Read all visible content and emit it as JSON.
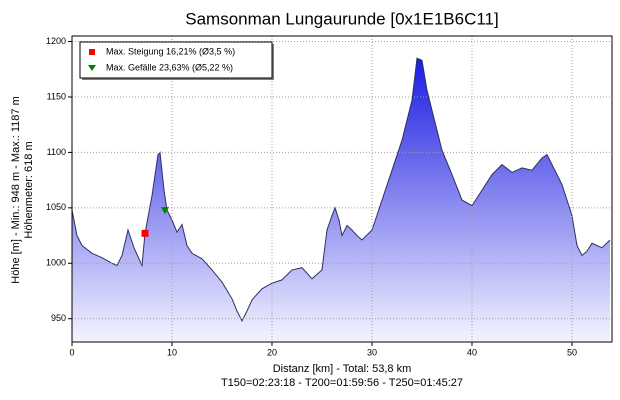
{
  "chart_data": {
    "type": "area",
    "title": "Samsonman Lungaurunde [0x1E1B6C11]",
    "y_label": [
      "Höhe [m] - Min.: 948 m - Max.: 1187 m",
      "Höhenmeter: 618 m"
    ],
    "x_label": "Distanz [km] - Total: 53,8 km",
    "footer": "T150=02:23:18 - T200=01:59:56 - T250=01:45:27",
    "xlim": [
      0,
      54
    ],
    "ylim": [
      929,
      1205
    ],
    "xticks": [
      0,
      10,
      20,
      30,
      40,
      50
    ],
    "yticks": [
      950,
      1000,
      1050,
      1100,
      1150,
      1200
    ],
    "grid": true,
    "legend": "upper left",
    "profile": {
      "color_top": "#0a0ae0",
      "color_bottom": "#f4f4ff",
      "line_color": "#303060",
      "x": [
        0,
        0.5,
        1,
        2,
        3,
        4,
        4.5,
        5,
        5.6,
        6.2,
        7,
        7.3,
        8,
        8.6,
        8.8,
        9.2,
        9.5,
        10,
        10.5,
        11,
        11.5,
        12,
        13,
        14,
        15,
        16,
        16.5,
        17,
        17.5,
        18,
        19,
        20,
        21,
        22,
        23,
        24,
        25,
        25.5,
        26,
        26.3,
        26.7,
        27,
        27.5,
        28,
        28.5,
        29,
        30,
        31,
        32,
        33,
        34,
        34.5,
        35,
        35.5,
        36,
        36.5,
        37,
        38,
        39,
        40,
        41,
        42,
        43,
        44,
        45,
        46,
        47,
        47.5,
        48,
        49,
        50,
        50.5,
        51,
        51.5,
        52,
        53,
        53.8
      ],
      "values": [
        1048,
        1025,
        1016,
        1009,
        1005,
        1000,
        998,
        1007,
        1030,
        1014,
        998,
        1027,
        1061,
        1098,
        1100,
        1066,
        1048,
        1039,
        1028,
        1035,
        1016,
        1009,
        1004,
        994,
        983,
        968,
        957,
        948,
        957,
        967,
        977,
        982,
        985,
        994,
        996,
        986,
        994,
        1030,
        1043,
        1050,
        1039,
        1025,
        1034,
        1030,
        1025,
        1021,
        1030,
        1057,
        1084,
        1111,
        1147,
        1185,
        1183,
        1156,
        1138,
        1120,
        1102,
        1080,
        1057,
        1052,
        1066,
        1080,
        1089,
        1082,
        1086,
        1084,
        1095,
        1098,
        1089,
        1071,
        1043,
        1016,
        1007,
        1011,
        1018,
        1014,
        1021
      ]
    },
    "markers": [
      {
        "name": "Max. Steigung 16,21% (Ø3,5 %)",
        "color": "#ff0000",
        "shape": "square",
        "x": [
          7.3
        ],
        "values": [
          1027
        ]
      },
      {
        "name": "Max. Gefälle 23,63% (Ø5,22 %)",
        "color": "#008000",
        "shape": "triangle",
        "x": [
          9.3
        ],
        "values": [
          1048
        ]
      }
    ]
  }
}
